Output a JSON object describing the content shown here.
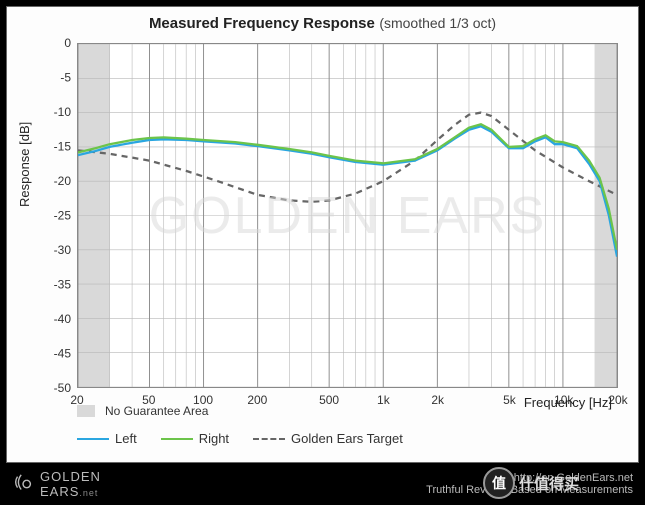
{
  "title_main": "Measured Frequency Response",
  "title_sub": "(smoothed 1/3 oct)",
  "ylabel": "Response [dB]",
  "xlabel": "Frequency [Hz]",
  "no_guarantee_label": "No Guarantee Area",
  "legend": {
    "left": "Left",
    "right": "Right",
    "target": "Golden Ears Target"
  },
  "footer": {
    "logo_top": "GOLDEN",
    "logo_bot": "EARS",
    "logo_suffix": ".net",
    "url": "http://en.GoldenEars.net",
    "tagline": "Truthful Reviews Based on Measurements"
  },
  "badge_text": "什值得买",
  "badge_char": "值",
  "watermark": "GOLDEN EARS",
  "chart": {
    "type": "line-log-x",
    "xlim": [
      20,
      20000
    ],
    "ylim": [
      -50,
      0
    ],
    "ytick_step": 5,
    "yticks": [
      0,
      -5,
      -10,
      -15,
      -20,
      -25,
      -30,
      -35,
      -40,
      -45,
      -50
    ],
    "xticks": [
      20,
      50,
      100,
      200,
      500,
      1000,
      2000,
      5000,
      10000,
      20000
    ],
    "xtick_labels": [
      "20",
      "50",
      "100",
      "200",
      "500",
      "1k",
      "2k",
      "5k",
      "10k",
      "20k"
    ],
    "minor_x": [
      20,
      30,
      40,
      50,
      60,
      70,
      80,
      90,
      100,
      200,
      300,
      400,
      500,
      600,
      700,
      800,
      900,
      1000,
      2000,
      3000,
      4000,
      5000,
      6000,
      7000,
      8000,
      9000,
      10000,
      20000
    ],
    "no_guarantee_bands": [
      [
        20,
        30
      ],
      [
        15000,
        20000
      ]
    ],
    "background_color": "#ffffff",
    "grid_color": "#b8b8b8",
    "grid_major_color": "#888888",
    "shade_color": "#d9d9d9",
    "colors": {
      "left": "#2aa6e0",
      "right": "#6cc44a",
      "target": "#666666"
    },
    "line_width": 2.2,
    "target_dash": "6,5",
    "series": {
      "left": [
        [
          20,
          -16.2
        ],
        [
          25,
          -15.6
        ],
        [
          30,
          -15.0
        ],
        [
          40,
          -14.4
        ],
        [
          50,
          -14.0
        ],
        [
          60,
          -13.9
        ],
        [
          80,
          -14.0
        ],
        [
          100,
          -14.2
        ],
        [
          150,
          -14.5
        ],
        [
          200,
          -14.9
        ],
        [
          300,
          -15.5
        ],
        [
          400,
          -16.0
        ],
        [
          500,
          -16.5
        ],
        [
          700,
          -17.2
        ],
        [
          1000,
          -17.6
        ],
        [
          1500,
          -17.0
        ],
        [
          2000,
          -15.5
        ],
        [
          2500,
          -13.8
        ],
        [
          3000,
          -12.5
        ],
        [
          3500,
          -12.0
        ],
        [
          4000,
          -12.8
        ],
        [
          5000,
          -15.2
        ],
        [
          6000,
          -15.2
        ],
        [
          7000,
          -14.2
        ],
        [
          8000,
          -13.6
        ],
        [
          9000,
          -14.6
        ],
        [
          10000,
          -14.6
        ],
        [
          12000,
          -15.2
        ],
        [
          14000,
          -17.5
        ],
        [
          16000,
          -20.0
        ],
        [
          18000,
          -25.0
        ],
        [
          20000,
          -31.0
        ]
      ],
      "right": [
        [
          20,
          -15.8
        ],
        [
          25,
          -15.2
        ],
        [
          30,
          -14.6
        ],
        [
          40,
          -14.0
        ],
        [
          50,
          -13.7
        ],
        [
          60,
          -13.6
        ],
        [
          80,
          -13.8
        ],
        [
          100,
          -14.0
        ],
        [
          150,
          -14.3
        ],
        [
          200,
          -14.7
        ],
        [
          300,
          -15.3
        ],
        [
          400,
          -15.8
        ],
        [
          500,
          -16.3
        ],
        [
          700,
          -17.0
        ],
        [
          1000,
          -17.4
        ],
        [
          1500,
          -16.8
        ],
        [
          2000,
          -15.3
        ],
        [
          2500,
          -13.6
        ],
        [
          3000,
          -12.2
        ],
        [
          3500,
          -11.7
        ],
        [
          4000,
          -12.5
        ],
        [
          5000,
          -15.0
        ],
        [
          6000,
          -14.9
        ],
        [
          7000,
          -13.9
        ],
        [
          8000,
          -13.3
        ],
        [
          9000,
          -14.2
        ],
        [
          10000,
          -14.3
        ],
        [
          12000,
          -14.9
        ],
        [
          14000,
          -17.0
        ],
        [
          16000,
          -19.5
        ],
        [
          18000,
          -24.0
        ],
        [
          20000,
          -30.0
        ]
      ],
      "target": [
        [
          20,
          -15.5
        ],
        [
          30,
          -16.0
        ],
        [
          50,
          -17.0
        ],
        [
          80,
          -18.5
        ],
        [
          120,
          -20.0
        ],
        [
          200,
          -22.0
        ],
        [
          300,
          -22.8
        ],
        [
          400,
          -23.0
        ],
        [
          500,
          -22.8
        ],
        [
          700,
          -21.8
        ],
        [
          1000,
          -20.0
        ],
        [
          1500,
          -17.0
        ],
        [
          2000,
          -14.0
        ],
        [
          2500,
          -11.8
        ],
        [
          3000,
          -10.3
        ],
        [
          3500,
          -10.0
        ],
        [
          4000,
          -10.5
        ],
        [
          5000,
          -12.5
        ],
        [
          7000,
          -15.5
        ],
        [
          10000,
          -18.0
        ],
        [
          14000,
          -20.0
        ],
        [
          20000,
          -22.0
        ]
      ]
    }
  }
}
